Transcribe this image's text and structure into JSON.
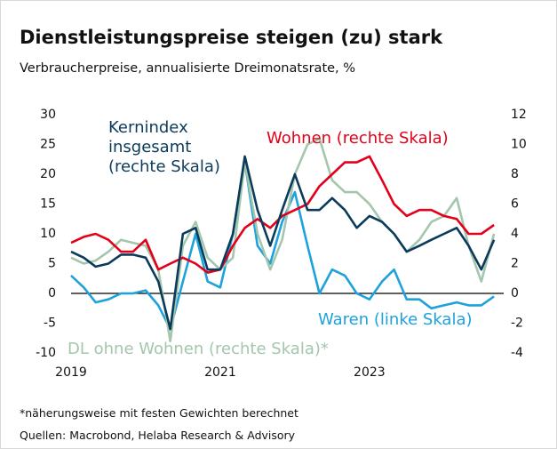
{
  "chart_data": {
    "type": "line",
    "title": "Dienstleistungspreise steigen (zu) stark",
    "subtitle": "Verbraucherpreise, annualisierte Dreimonatsrate, %",
    "footnote": "*näherungsweise mit festen Gewichten berechnet",
    "source": "Quellen: Macrobond, Helaba Research & Advisory",
    "x": [
      2019,
      2019.17,
      2019.33,
      2019.5,
      2019.67,
      2019.83,
      2020,
      2020.17,
      2020.33,
      2020.5,
      2020.67,
      2020.83,
      2021,
      2021.17,
      2021.33,
      2021.5,
      2021.67,
      2021.83,
      2022,
      2022.17,
      2022.33,
      2022.5,
      2022.67,
      2022.83,
      2023,
      2023.17,
      2023.33,
      2023.5,
      2023.67,
      2023.83,
      2024,
      2024.17,
      2024.33,
      2024.5,
      2024.67
    ],
    "xlim": [
      2019,
      2024.8
    ],
    "xticks": [
      2019,
      2021,
      2023
    ],
    "ylim": [
      -10,
      30
    ],
    "yticks": [
      -10,
      -5,
      0,
      5,
      10,
      15,
      20,
      25,
      30
    ],
    "y2lim": [
      -4,
      12
    ],
    "y2ticks": [
      -4,
      -2,
      0,
      2,
      4,
      6,
      8,
      10,
      12
    ],
    "zero_line": true,
    "series": [
      {
        "name": "Waren (linke Skala)",
        "color": "#1ea2dc",
        "axis": "y",
        "values": [
          3,
          1,
          -1.5,
          -1,
          0,
          0,
          0.5,
          -2,
          -6,
          2,
          10,
          2,
          1,
          10,
          22,
          8,
          5,
          12,
          17,
          8,
          0,
          4,
          3,
          0,
          -1,
          2,
          4,
          -1,
          -1,
          -2.5,
          -2,
          -1.5,
          -2,
          -2,
          -0.5
        ]
      },
      {
        "name": "DL ohne Wohnen (rechte Skala)*",
        "color": "#a3c6ad",
        "axis": "y2",
        "values": [
          2.4,
          2,
          2.2,
          2.8,
          3.6,
          3.4,
          3.2,
          1.6,
          -3.2,
          3.2,
          4.8,
          2.4,
          1.6,
          2.4,
          8.8,
          4,
          1.6,
          3.6,
          8,
          10,
          10.4,
          7.6,
          6.8,
          6.8,
          6,
          4.8,
          4,
          2.8,
          3.6,
          4.8,
          5.2,
          6.4,
          3.2,
          0.8,
          4
        ]
      },
      {
        "name": "Wohnen (rechte Skala)",
        "color": "#e2001a",
        "axis": "y2",
        "values": [
          3.4,
          3.8,
          4,
          3.6,
          2.8,
          2.8,
          3.6,
          1.6,
          2,
          2.4,
          2,
          1.4,
          1.6,
          3.2,
          4.4,
          5,
          4.4,
          5.2,
          5.6,
          6,
          7.2,
          8,
          8.8,
          8.8,
          9.2,
          7.6,
          6,
          5.2,
          5.6,
          5.6,
          5.2,
          5,
          4,
          4,
          4.6
        ]
      },
      {
        "name": "Kernindex insgesamt (rechte Skala)",
        "color": "#0b3b5a",
        "axis": "y2",
        "values": [
          2.8,
          2.4,
          1.8,
          2,
          2.6,
          2.6,
          2.4,
          0.8,
          -2.4,
          4,
          4.4,
          1.6,
          1.6,
          4,
          9.2,
          5.6,
          3.2,
          5.6,
          8,
          5.6,
          5.6,
          6.4,
          5.6,
          4.4,
          5.2,
          4.8,
          4,
          2.8,
          3.2,
          3.6,
          4,
          4.4,
          3.2,
          1.6,
          3.6
        ]
      }
    ]
  }
}
